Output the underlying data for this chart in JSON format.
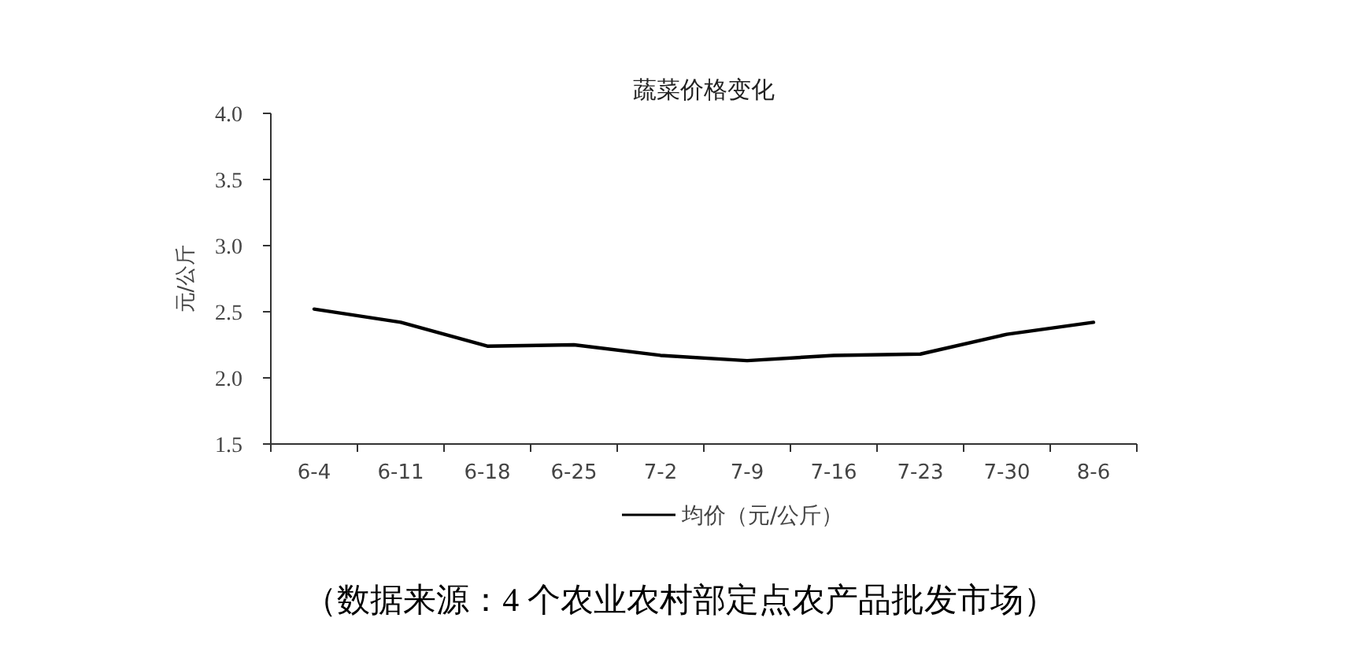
{
  "chart_data": {
    "type": "line",
    "title": "蔬菜价格变化",
    "ylabel": "元/公斤",
    "categories": [
      "6-4",
      "6-11",
      "6-18",
      "6-25",
      "7-2",
      "7-9",
      "7-16",
      "7-23",
      "7-30",
      "8-6"
    ],
    "series": [
      {
        "name": "均价（元/公斤）",
        "color": "#000000",
        "values": [
          2.52,
          2.42,
          2.24,
          2.25,
          2.17,
          2.13,
          2.17,
          2.18,
          2.33,
          2.42
        ]
      }
    ],
    "ylim": [
      1.5,
      4.0
    ],
    "yticks": [
      {
        "value": 1.5,
        "label": "1.5"
      },
      {
        "value": 2.0,
        "label": "2.0"
      },
      {
        "value": 2.5,
        "label": "2.5"
      },
      {
        "value": 3.0,
        "label": "3.0"
      },
      {
        "value": 3.5,
        "label": "3.5"
      },
      {
        "value": 4.0,
        "label": "4.0"
      }
    ],
    "grid": false,
    "legend": "bottom",
    "marker": "none",
    "line_style": "solid",
    "annotations": [
      "（数据来源：4 个农业农村部定点农产品批发市场）"
    ]
  }
}
